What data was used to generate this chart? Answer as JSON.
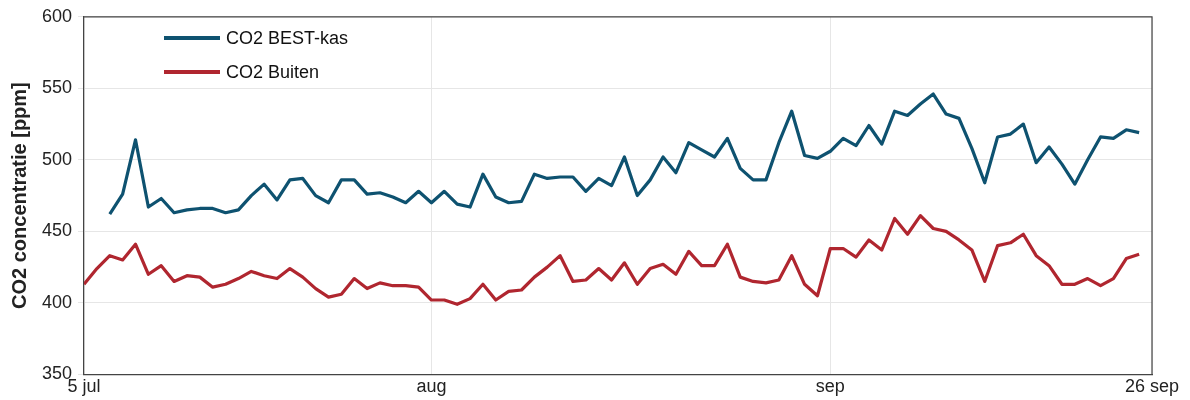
{
  "chart_data": {
    "type": "line",
    "ylabel": "CO2 concentratie [ppm]",
    "x": [
      "--07-05",
      "--07-06",
      "--07-07",
      "--07-08",
      "--07-09",
      "--07-10",
      "--07-11",
      "--07-12",
      "--07-13",
      "--07-14",
      "--07-15",
      "--07-16",
      "--07-17",
      "--07-18",
      "--07-19",
      "--07-20",
      "--07-21",
      "--07-22",
      "--07-23",
      "--07-24",
      "--07-25",
      "--07-26",
      "--07-27",
      "--07-28",
      "--07-29",
      "--07-30",
      "--07-31",
      "--08-01",
      "--08-02",
      "--08-03",
      "--08-04",
      "--08-05",
      "--08-06",
      "--08-07",
      "--08-08",
      "--08-09",
      "--08-10",
      "--08-11",
      "--08-12",
      "--08-13",
      "--08-14",
      "--08-15",
      "--08-16",
      "--08-17",
      "--08-18",
      "--08-19",
      "--08-20",
      "--08-21",
      "--08-22",
      "--08-23",
      "--08-24",
      "--08-25",
      "--08-26",
      "--08-27",
      "--08-28",
      "--08-29",
      "--08-30",
      "--08-31",
      "--09-01",
      "--09-02",
      "--09-03",
      "--09-04",
      "--09-05",
      "--09-06",
      "--09-07",
      "--09-08",
      "--09-09",
      "--09-10",
      "--09-11",
      "--09-12",
      "--09-13",
      "--09-14",
      "--09-15",
      "--09-16",
      "--09-17",
      "--09-18",
      "--09-19",
      "--09-20",
      "--09-21",
      "--09-22",
      "--09-23",
      "--09-24",
      "--09-25"
    ],
    "series": [
      {
        "name": "CO2 BEST-kas",
        "color": "#0e5270",
        "values": [
          null,
          null,
          462,
          476,
          514,
          467,
          473,
          463,
          465,
          466,
          466,
          463,
          465,
          475,
          483,
          472,
          486,
          487,
          475,
          470,
          486,
          486,
          476,
          477,
          474,
          470,
          478,
          470,
          478,
          469,
          467,
          490,
          474,
          470,
          471,
          490,
          487,
          488,
          488,
          478,
          487,
          482,
          502,
          475,
          486,
          502,
          491,
          512,
          507,
          502,
          515,
          494,
          486,
          486,
          512,
          534,
          503,
          501,
          506,
          515,
          510,
          524,
          511,
          534,
          531,
          539,
          546,
          532,
          529,
          508,
          484,
          516,
          518,
          525,
          498,
          509,
          497,
          483,
          500,
          516,
          515,
          521,
          519
        ]
      },
      {
        "name": "CO2 Buiten",
        "color": "#b0262f",
        "values": [
          413,
          424,
          433,
          430,
          441,
          420,
          426,
          415,
          419,
          418,
          411,
          413,
          417,
          422,
          419,
          417,
          424,
          418,
          410,
          404,
          406,
          417,
          410,
          414,
          412,
          412,
          411,
          402,
          402,
          399,
          403,
          413,
          402,
          408,
          409,
          418,
          425,
          433,
          415,
          416,
          424,
          416,
          428,
          413,
          424,
          427,
          420,
          436,
          426,
          426,
          441,
          418,
          415,
          414,
          416,
          433,
          413,
          405,
          438,
          438,
          432,
          444,
          437,
          459,
          448,
          461,
          452,
          450,
          444,
          437,
          415,
          440,
          442,
          448,
          433,
          426,
          413,
          413,
          417,
          412,
          417,
          431,
          434
        ]
      }
    ],
    "xlim": [
      "--07-05",
      "--09-26"
    ],
    "xticks": [
      {
        "value": "--07-05",
        "label": "5 jul"
      },
      {
        "value": "--08-01",
        "label": "aug"
      },
      {
        "value": "--09-01",
        "label": "sep"
      },
      {
        "value": "--09-26",
        "label": "26 sep"
      }
    ],
    "ylim": [
      350,
      600
    ],
    "yticks": [
      350,
      400,
      450,
      500,
      550,
      600
    ],
    "grid": true,
    "legend": "top left",
    "marker": "none",
    "line_style": "solid"
  }
}
